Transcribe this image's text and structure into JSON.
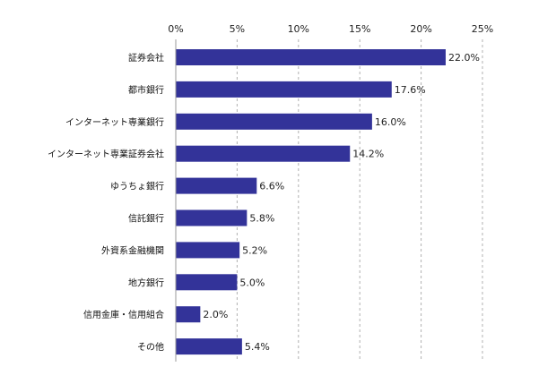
{
  "chart_data": {
    "type": "bar",
    "orientation": "horizontal",
    "categories": [
      "証券会社",
      "都市銀行",
      "インターネット専業銀行",
      "インターネット専業証券会社",
      "ゆうちょ銀行",
      "信託銀行",
      "外資系金融機関",
      "地方銀行",
      "信用金庫・信用組合",
      "その他"
    ],
    "values": [
      22.0,
      17.6,
      16.0,
      14.2,
      6.6,
      5.8,
      5.2,
      5.0,
      2.0,
      5.4
    ],
    "value_labels": [
      "22.0%",
      "17.6%",
      "16.0%",
      "14.2%",
      "6.6%",
      "5.8%",
      "5.2%",
      "5.0%",
      "2.0%",
      "5.4%"
    ],
    "xlim": [
      0,
      25
    ],
    "ticks": [
      0,
      5,
      10,
      15,
      20,
      25
    ],
    "tick_labels": [
      "0%",
      "5%",
      "10%",
      "15%",
      "20%",
      "25%"
    ],
    "axis_position": "top",
    "grid": true,
    "bar_color": "#333399",
    "title": "",
    "xlabel": "",
    "ylabel": ""
  }
}
